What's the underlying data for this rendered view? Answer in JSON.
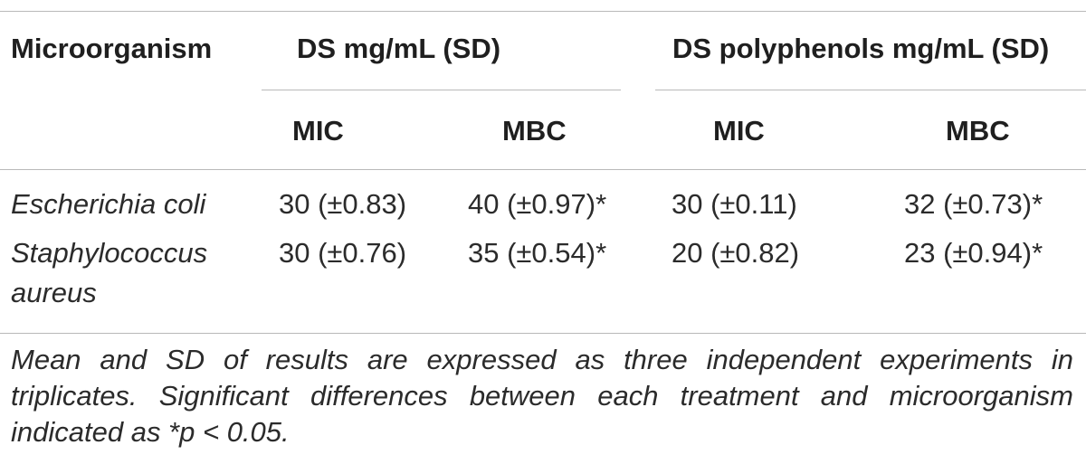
{
  "table": {
    "header": {
      "microorganism": "Microorganism",
      "group_ds": "DS mg/mL (SD)",
      "group_poly": "DS polyphenols mg/mL (SD)",
      "ds_mic": "MIC",
      "ds_mbc": "MBC",
      "poly_mic": "MIC",
      "poly_mbc": "MBC"
    },
    "rows": [
      {
        "organism_line1": "Escherichia coli",
        "organism_line2": "",
        "ds_mic": "30 (±0.83)",
        "ds_mbc": "40 (±0.97)*",
        "poly_mic": "30 (±0.11)",
        "poly_mbc": "32 (±0.73)*"
      },
      {
        "organism_line1": "Staphylococcus",
        "organism_line2": "aureus",
        "ds_mic": "30 (±0.76)",
        "ds_mbc": "35 (±0.54)*",
        "poly_mic": "20 (±0.82)",
        "poly_mbc": "23 (±0.94)*"
      }
    ],
    "footnote": "Mean and SD of results are expressed as three independent experiments in triplicates. Significant differences between each treatment and microorganism indicated as *p < 0.05."
  }
}
